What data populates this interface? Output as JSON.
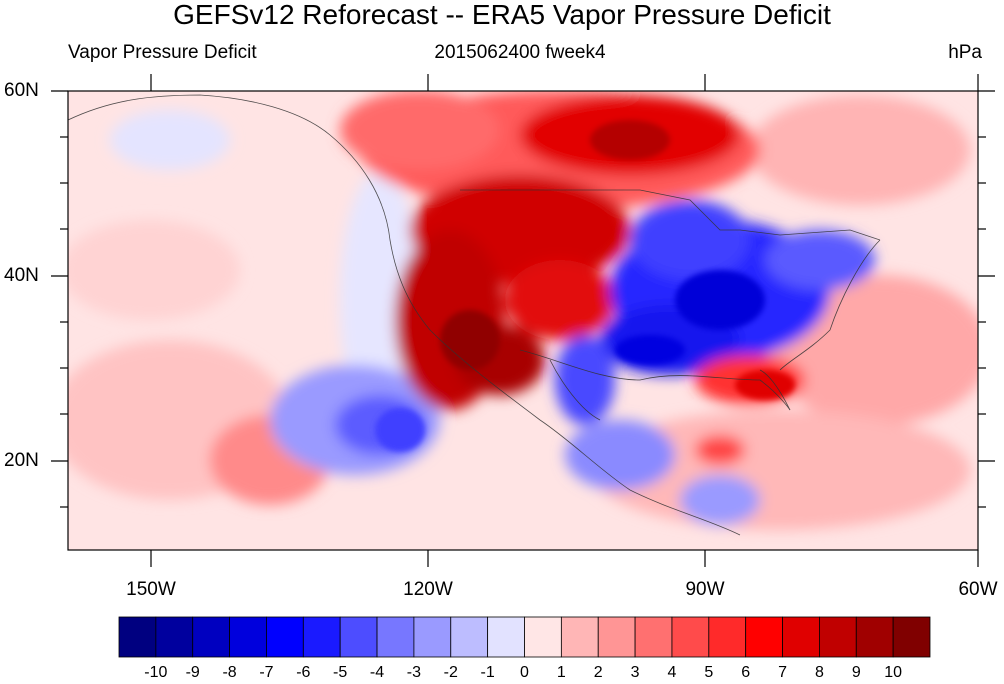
{
  "title": "GEFSv12 Reforecast -- ERA5 Vapor Pressure Deficit",
  "left_subtitle": "Vapor Pressure Deficit",
  "center_subtitle": "2015062400 fweek4",
  "units": "hPa",
  "lat_labels": [
    "60N",
    "40N",
    "20N"
  ],
  "lon_labels": [
    "150W",
    "120W",
    "90W",
    "60W"
  ],
  "colorbar": {
    "labels": [
      "-10",
      "-9",
      "-8",
      "-7",
      "-6",
      "-5",
      "-4",
      "-3",
      "-2",
      "-1",
      "0",
      "1",
      "2",
      "3",
      "4",
      "5",
      "6",
      "7",
      "8",
      "9",
      "10"
    ],
    "colors": [
      "#000080",
      "#00009e",
      "#0000c0",
      "#0000dd",
      "#0000ff",
      "#1a1aff",
      "#4d4dff",
      "#7777ff",
      "#9a9aff",
      "#bdbdff",
      "#e2e2ff",
      "#ffe6e6",
      "#ffb6b6",
      "#ff9595",
      "#ff7070",
      "#ff4b4b",
      "#ff2a2a",
      "#ff0000",
      "#e00000",
      "#c00000",
      "#a00000",
      "#800000"
    ]
  },
  "chart_data": {
    "type": "heatmap",
    "title": "GEFSv12 Reforecast -- ERA5 Vapor Pressure Deficit",
    "variable": "Vapor Pressure Deficit",
    "forecast": "2015062400 fweek4",
    "units": "hPa",
    "lon_range": [
      -159,
      -60
    ],
    "lat_range": [
      10,
      60
    ],
    "lon_ticks": [
      -150,
      -120,
      -90,
      -60
    ],
    "lat_ticks": [
      20,
      40,
      60
    ],
    "contour_levels": [
      -10,
      -9,
      -8,
      -7,
      -6,
      -5,
      -4,
      -3,
      -2,
      -1,
      0,
      1,
      2,
      3,
      4,
      5,
      6,
      7,
      8,
      9,
      10
    ],
    "anomaly_regions": [
      {
        "lon": -140,
        "lat": 45,
        "value": 0.5
      },
      {
        "lon": -110,
        "lat": 55,
        "value": 4
      },
      {
        "lon": -98,
        "lat": 56,
        "value": 7
      },
      {
        "lon": -85,
        "lat": 57,
        "value": 3
      },
      {
        "lon": -115,
        "lat": 45,
        "value": 6
      },
      {
        "lon": -103,
        "lat": 43,
        "value": 7
      },
      {
        "lon": -118,
        "lat": 36,
        "value": 7
      },
      {
        "lon": -112,
        "lat": 29,
        "value": 8
      },
      {
        "lon": -95,
        "lat": 38,
        "value": -6
      },
      {
        "lon": -87,
        "lat": 37,
        "value": -6
      },
      {
        "lon": -78,
        "lat": 41,
        "value": -4
      },
      {
        "lon": -100,
        "lat": 27,
        "value": -4
      },
      {
        "lon": -95,
        "lat": 18,
        "value": -3
      },
      {
        "lon": -82,
        "lat": 28,
        "value": 6
      },
      {
        "lon": -132,
        "lat": 24,
        "value": -3
      },
      {
        "lon": -145,
        "lat": 20,
        "value": 4
      },
      {
        "lon": -70,
        "lat": 30,
        "value": 2
      },
      {
        "lon": -85,
        "lat": 12,
        "value": -2
      }
    ]
  }
}
